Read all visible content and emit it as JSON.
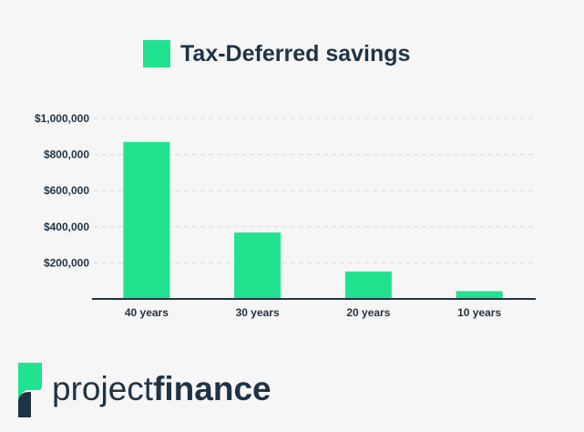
{
  "chart_data": {
    "type": "bar",
    "categories": [
      "40 years",
      "30 years",
      "20 years",
      "10 years"
    ],
    "series": [
      {
        "name": "Tax-Deferred savings",
        "values": [
          870000,
          368000,
          152000,
          43000
        ],
        "color": "#21e28f"
      }
    ],
    "yticks": [
      200000,
      400000,
      600000,
      800000,
      1000000
    ],
    "ytick_labels": [
      "$200,000",
      "$400,000",
      "$600,000",
      "$800,000",
      "$1,000,000"
    ],
    "ylim": [
      0,
      1000000
    ],
    "grid": true,
    "grid_style": "dashed",
    "legend_position": "top-center"
  },
  "logo": {
    "text_regular": "project",
    "text_bold": "finance",
    "icon": "project-finance-logo-icon",
    "colors": {
      "accent": "#21e28f",
      "dark": "#1f3345"
    }
  },
  "colors": {
    "background": "#f6f6f6",
    "text": "#1f3345",
    "axis": "#1f3345",
    "grid": "#d9d9d9"
  }
}
